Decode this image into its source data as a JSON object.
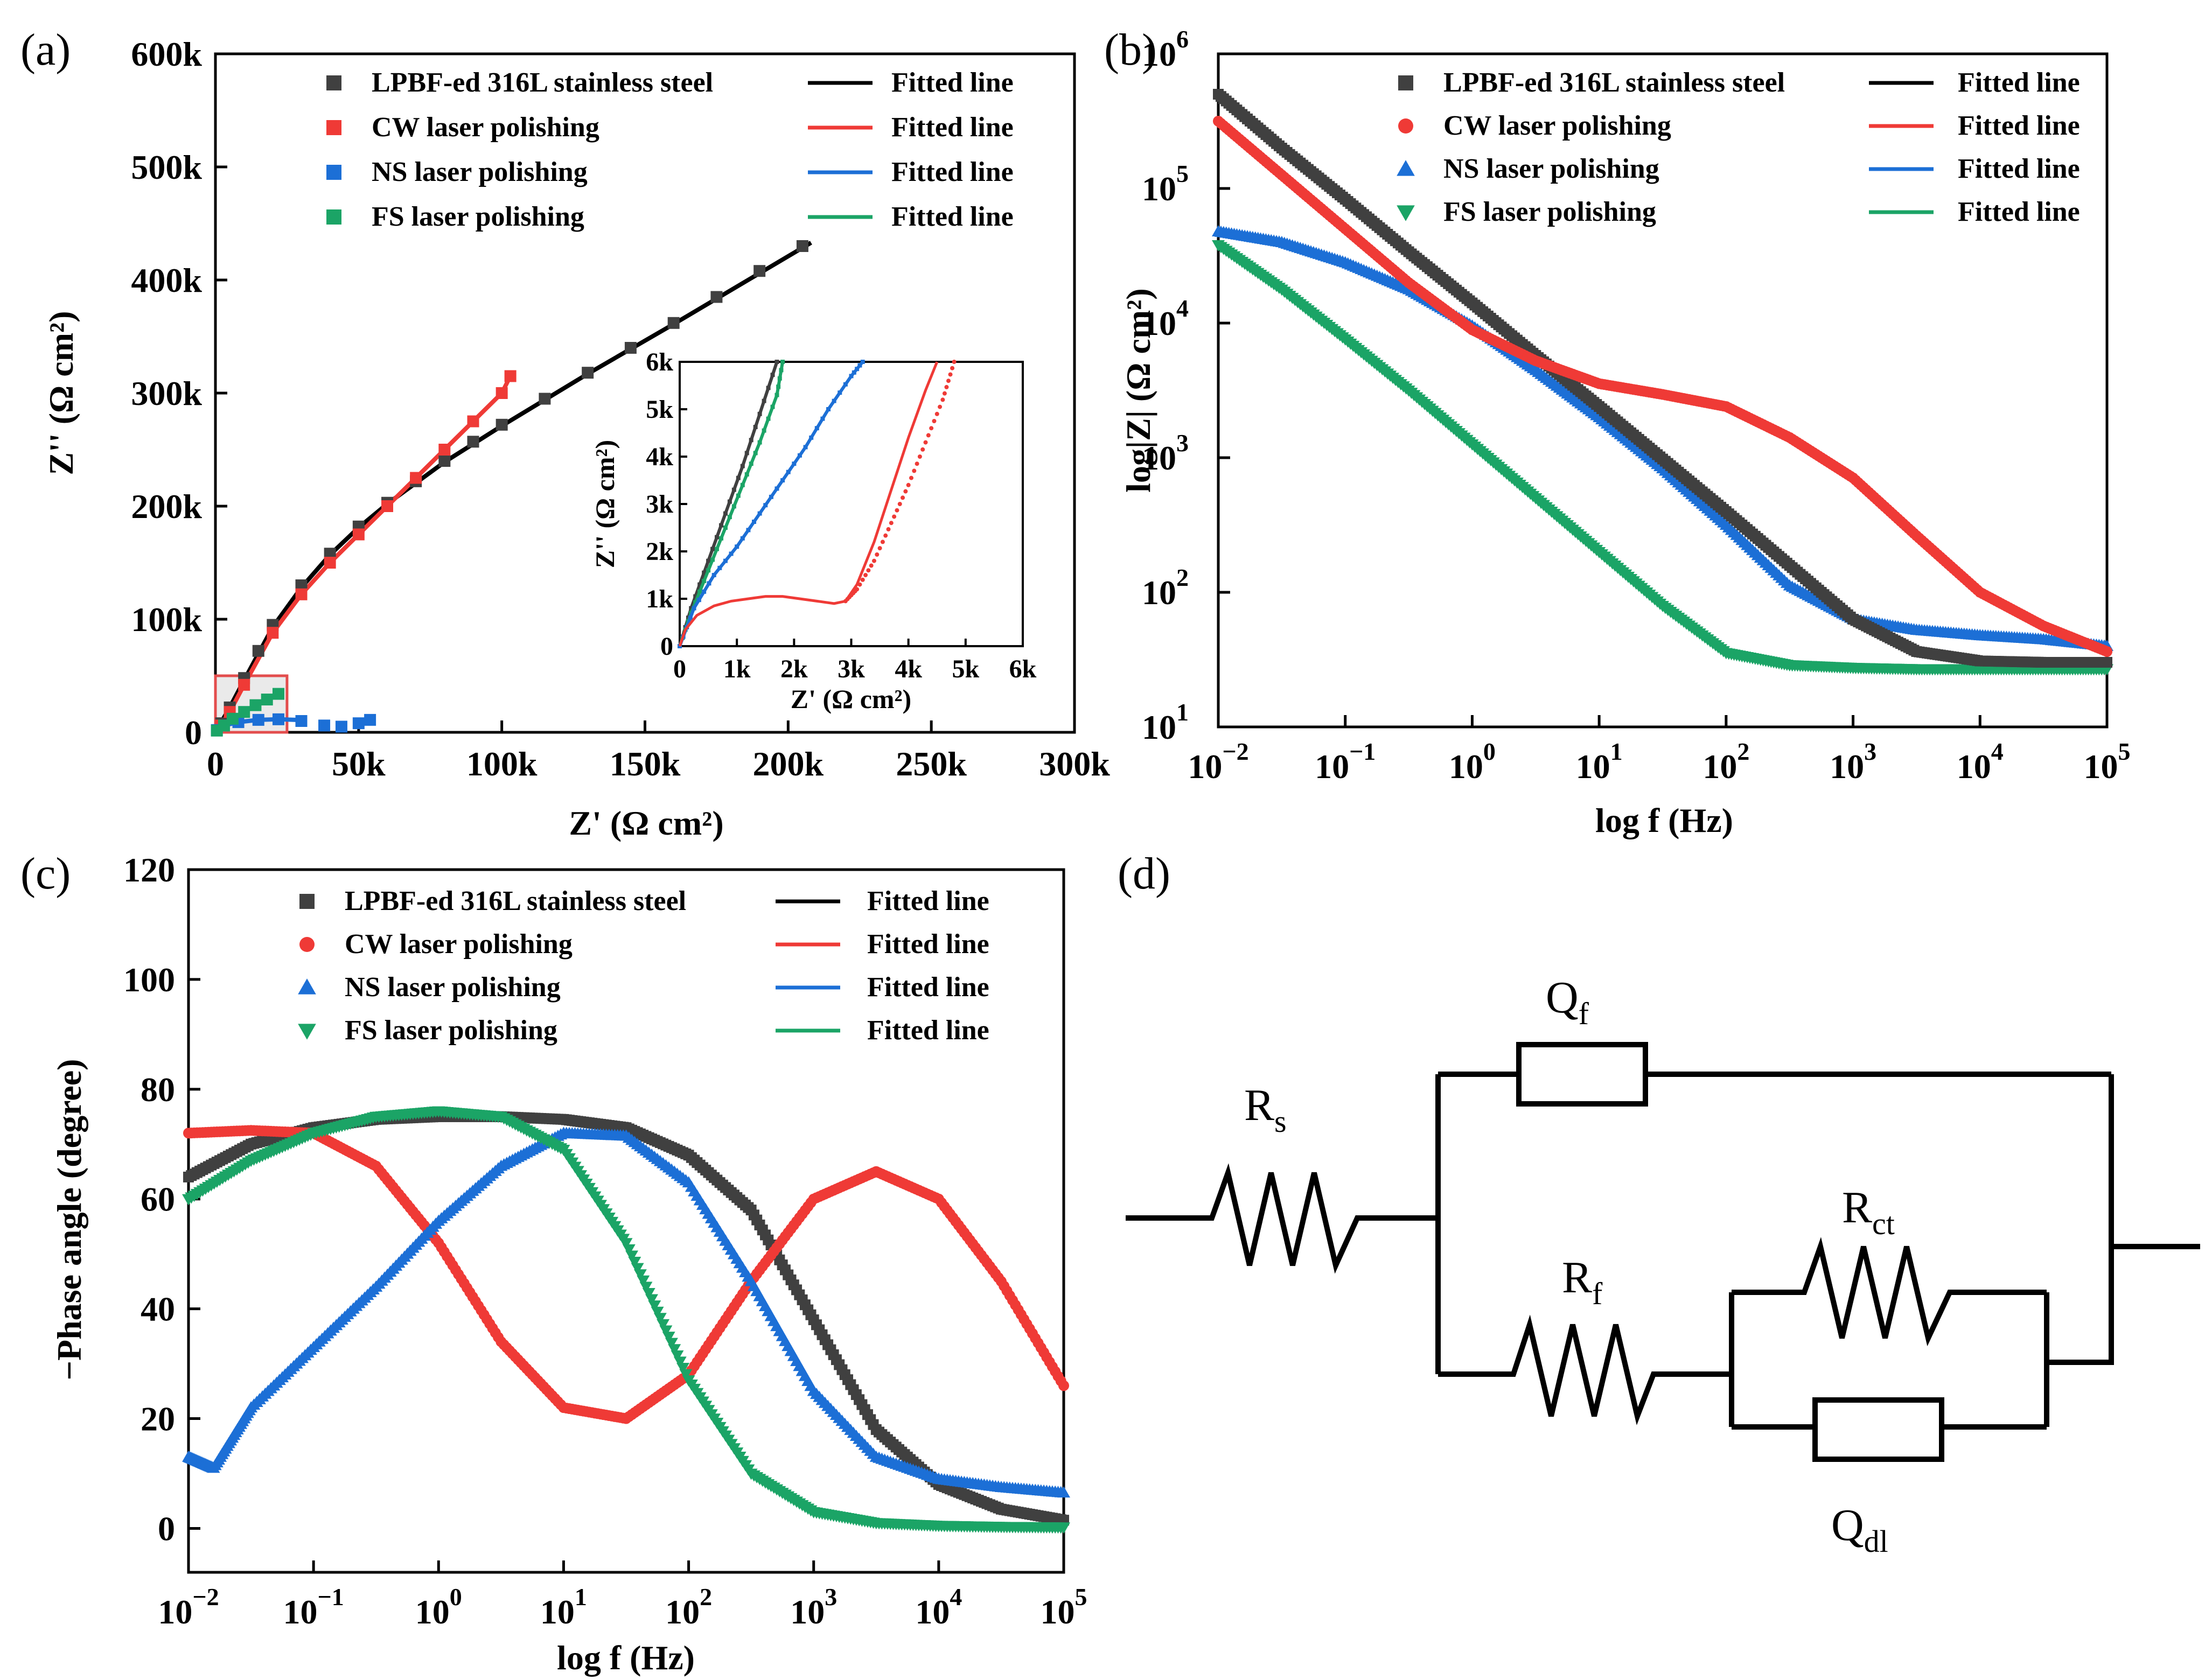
{
  "chart_data": [
    {
      "panel": "(a)",
      "type": "scatter",
      "title": "",
      "xlabel": "Z' (Ω cm²)",
      "ylabel": "Z'' (Ω cm²)",
      "xlim": [
        0,
        300000
      ],
      "ylim": [
        0,
        600000
      ],
      "xticks": [
        "0",
        "50k",
        "100k",
        "150k",
        "200k",
        "250k",
        "300k"
      ],
      "yticks": [
        "0",
        "100k",
        "200k",
        "300k",
        "400k",
        "500k",
        "600k"
      ],
      "legend": {
        "markers": [
          "LPBF-ed 316L stainless steel",
          "CW laser polishing",
          "NS laser polishing",
          "FS laser polishing"
        ],
        "lines": [
          "Fitted line",
          "Fitted line",
          "Fitted line",
          "Fitted line"
        ]
      },
      "series": [
        {
          "name": "LPBF-ed 316L stainless steel",
          "color": "#404040",
          "marker": "square",
          "x": [
            2000,
            5000,
            10000,
            15000,
            20000,
            30000,
            40000,
            50000,
            60000,
            70000,
            80000,
            90000,
            100000,
            115000,
            130000,
            145000,
            160000,
            175000,
            190000,
            205000
          ],
          "y": [
            8000,
            22000,
            48000,
            72000,
            95000,
            130000,
            158000,
            182000,
            203000,
            222000,
            240000,
            257000,
            272000,
            295000,
            318000,
            340000,
            362000,
            385000,
            408000,
            430000
          ]
        },
        {
          "name": "CW laser polishing",
          "color": "#ef3a36",
          "marker": "square",
          "x": [
            2000,
            5000,
            10000,
            20000,
            30000,
            40000,
            50000,
            60000,
            70000,
            80000,
            90000,
            100000,
            103000
          ],
          "y": [
            6000,
            18000,
            42000,
            88000,
            122000,
            150000,
            175000,
            200000,
            225000,
            250000,
            275000,
            300000,
            315000
          ]
        },
        {
          "name": "NS laser polishing",
          "color": "#1c6fd6",
          "marker": "square",
          "x": [
            500,
            3000,
            8000,
            15000,
            22000,
            30000,
            38000,
            44000,
            50000,
            54000
          ],
          "y": [
            2000,
            6000,
            9000,
            11000,
            11500,
            10000,
            6000,
            5000,
            8000,
            11000
          ]
        },
        {
          "name": "FS laser polishing",
          "color": "#1ba466",
          "marker": "square",
          "x": [
            500,
            3000,
            6000,
            10000,
            14000,
            18000,
            22000
          ],
          "y": [
            1500,
            6000,
            12000,
            18000,
            24000,
            29000,
            34000
          ]
        }
      ],
      "fits": [
        {
          "name": "Fitted line",
          "color": "#000000",
          "x": [
            0,
            5000,
            10000,
            20000,
            30000,
            40000,
            50000,
            60000,
            80000,
            100000,
            130000,
            160000,
            190000,
            208000
          ],
          "y": [
            0,
            22000,
            46000,
            93000,
            128000,
            157000,
            181000,
            202000,
            239000,
            271000,
            317000,
            361000,
            406000,
            433000
          ]
        },
        {
          "name": "Fitted line",
          "color": "#ef3a36",
          "x": [
            0,
            5000,
            10000,
            20000,
            30000,
            40000,
            50000,
            60000,
            70000,
            80000,
            90000,
            100000,
            103000
          ],
          "y": [
            0,
            18000,
            42000,
            88000,
            122000,
            150000,
            175000,
            200000,
            225000,
            250000,
            275000,
            300000,
            315000
          ]
        },
        {
          "name": "Fitted line",
          "color": "#1c6fd6",
          "x": [
            0,
            3000,
            8000,
            15000,
            22000,
            28000
          ],
          "y": [
            0,
            6000,
            9000,
            11000,
            11500,
            11000
          ]
        },
        {
          "name": "Fitted line",
          "color": "#1ba466",
          "x": [
            0,
            6000,
            12000,
            22000
          ],
          "y": [
            0,
            12000,
            21000,
            34000
          ]
        }
      ],
      "highlight_box": {
        "x": [
          0,
          25000
        ],
        "y": [
          0,
          50000
        ]
      },
      "inset": {
        "xlabel": "Z' (Ω cm²)",
        "ylabel": "Z'' (Ω cm²)",
        "xlim": [
          0,
          6000
        ],
        "ylim": [
          0,
          6000
        ],
        "xticks": [
          "0",
          "1k",
          "2k",
          "3k",
          "4k",
          "5k",
          "6k"
        ],
        "yticks": [
          "0",
          "1k",
          "2k",
          "3k",
          "4k",
          "5k",
          "6k"
        ],
        "series": [
          {
            "color": "#404040",
            "x": [
              0,
              200,
              500,
              800,
              1100,
              1400,
              1700
            ],
            "y": [
              0,
              800,
              1800,
              2800,
              3800,
              4900,
              6000
            ]
          },
          {
            "color": "#1ba466",
            "x": [
              0,
              200,
              500,
              800,
              1100,
              1400,
              1700,
              1800
            ],
            "y": [
              0,
              700,
              1600,
              2500,
              3400,
              4300,
              5300,
              6000
            ]
          },
          {
            "color": "#1c6fd6",
            "x": [
              0,
              250,
              600,
              1000,
              1400,
              1800,
              2200,
              2600,
              3000,
              3200
            ],
            "y": [
              0,
              800,
              1500,
              2100,
              2800,
              3500,
              4200,
              5000,
              5700,
              6000
            ]
          },
          {
            "color": "#ef3a36",
            "fit": true,
            "x": [
              0,
              100,
              300,
              600,
              900,
              1200,
              1500,
              1800,
              2100,
              2400,
              2700,
              2900,
              3100,
              3400,
              3700,
              4000,
              4300,
              4500
            ],
            "y": [
              0,
              350,
              650,
              850,
              950,
              1000,
              1050,
              1050,
              1000,
              950,
              900,
              950,
              1300,
              2200,
              3300,
              4400,
              5400,
              6000
            ]
          },
          {
            "color": "#ef3a36",
            "dotted": true,
            "x": [
              2900,
              3100,
              3400,
              3700,
              4000,
              4300,
              4600,
              4800
            ],
            "y": [
              950,
              1200,
              1800,
              2600,
              3400,
              4300,
              5200,
              6000
            ]
          }
        ]
      }
    },
    {
      "panel": "(b)",
      "type": "line",
      "title": "",
      "xlabel": "log f (Hz)",
      "ylabel": "log|Z| (Ω cm²)",
      "xscale": "log",
      "yscale": "log",
      "xlim": [
        0.01,
        100000
      ],
      "ylim": [
        10,
        1000000
      ],
      "xticks": [
        {
          "base": "10",
          "exp": "−2"
        },
        {
          "base": "10",
          "exp": "−1"
        },
        {
          "base": "10",
          "exp": "0"
        },
        {
          "base": "10",
          "exp": "1"
        },
        {
          "base": "10",
          "exp": "2"
        },
        {
          "base": "10",
          "exp": "3"
        },
        {
          "base": "10",
          "exp": "4"
        },
        {
          "base": "10",
          "exp": "5"
        }
      ],
      "yticks": [
        {
          "base": "10",
          "exp": "1"
        },
        {
          "base": "10",
          "exp": "2"
        },
        {
          "base": "10",
          "exp": "3"
        },
        {
          "base": "10",
          "exp": "4"
        },
        {
          "base": "10",
          "exp": "5"
        },
        {
          "base": "10",
          "exp": "6"
        }
      ],
      "legend": {
        "markers": [
          "LPBF-ed 316L stainless steel",
          "CW laser polishing",
          "NS laser polishing",
          "FS laser polishing"
        ],
        "lines": [
          "Fitted line",
          "Fitted line",
          "Fitted line",
          "Fitted line"
        ]
      },
      "series": [
        {
          "name": "LPBF-ed 316L stainless steel",
          "color": "#404040",
          "marker": "square",
          "logx": [
            -2,
            -1.5,
            -1,
            -0.5,
            0,
            0.5,
            1,
            1.5,
            2,
            2.5,
            3,
            3.5,
            4,
            4.5,
            5
          ],
          "logy": [
            5.7,
            5.3,
            4.92,
            4.53,
            4.15,
            3.76,
            3.38,
            2.99,
            2.6,
            2.2,
            1.8,
            1.56,
            1.49,
            1.48,
            1.48
          ]
        },
        {
          "name": "CW laser polishing",
          "color": "#ef3a36",
          "marker": "circle",
          "logx": [
            -2,
            -1.5,
            -1,
            -0.5,
            0,
            0.5,
            1,
            1.5,
            2,
            2.5,
            3,
            3.5,
            4,
            4.5,
            5
          ],
          "logy": [
            5.5,
            5.1,
            4.7,
            4.3,
            3.95,
            3.72,
            3.55,
            3.47,
            3.38,
            3.15,
            2.85,
            2.42,
            2.0,
            1.75,
            1.56
          ]
        },
        {
          "name": "NS laser polishing",
          "color": "#1c6fd6",
          "marker": "triangle",
          "logx": [
            -2,
            -1.5,
            -1,
            -0.5,
            0,
            0.5,
            1,
            1.5,
            2,
            2.5,
            3,
            3.5,
            4,
            4.5,
            5
          ],
          "logy": [
            4.68,
            4.6,
            4.45,
            4.25,
            3.98,
            3.65,
            3.3,
            2.92,
            2.5,
            2.05,
            1.8,
            1.72,
            1.68,
            1.65,
            1.6
          ]
        },
        {
          "name": "FS laser polishing",
          "color": "#1ba466",
          "marker": "triangle-down",
          "logx": [
            -2,
            -1.5,
            -1,
            -0.5,
            0,
            0.5,
            1,
            1.5,
            2,
            2.5,
            3,
            3.5,
            4,
            4.5,
            5
          ],
          "logy": [
            4.58,
            4.25,
            3.88,
            3.5,
            3.1,
            2.7,
            2.3,
            1.9,
            1.55,
            1.46,
            1.44,
            1.43,
            1.43,
            1.43,
            1.43
          ]
        }
      ]
    },
    {
      "panel": "(c)",
      "type": "line",
      "title": "",
      "xlabel": "log f (Hz)",
      "ylabel": "−Phase angle (degree)",
      "xscale": "log",
      "xlim": [
        0.01,
        100000
      ],
      "ylim": [
        -8,
        120
      ],
      "xticks": [
        {
          "base": "10",
          "exp": "−2"
        },
        {
          "base": "10",
          "exp": "−1"
        },
        {
          "base": "10",
          "exp": "0"
        },
        {
          "base": "10",
          "exp": "1"
        },
        {
          "base": "10",
          "exp": "2"
        },
        {
          "base": "10",
          "exp": "3"
        },
        {
          "base": "10",
          "exp": "4"
        },
        {
          "base": "10",
          "exp": "5"
        }
      ],
      "yticks": [
        "0",
        "20",
        "40",
        "60",
        "80",
        "100",
        "120"
      ],
      "legend": {
        "markers": [
          "LPBF-ed 316L stainless steel",
          "CW laser polishing",
          "NS laser polishing",
          "FS laser polishing"
        ],
        "lines": [
          "Fitted line",
          "Fitted line",
          "Fitted line",
          "Fitted line"
        ]
      },
      "series": [
        {
          "name": "LPBF-ed 316L stainless steel",
          "color": "#404040",
          "marker": "square",
          "logx": [
            -2,
            -1.5,
            -1,
            -0.5,
            0,
            0.5,
            1,
            1.5,
            2,
            2.5,
            3,
            3.5,
            4,
            4.5,
            5
          ],
          "y": [
            64,
            70,
            73,
            74.5,
            75,
            75,
            74.5,
            73,
            68,
            58,
            38,
            18,
            8,
            3.5,
            1.5
          ]
        },
        {
          "name": "CW laser polishing",
          "color": "#ef3a36",
          "marker": "circle",
          "logx": [
            -2,
            -1.5,
            -1,
            -0.5,
            0,
            0.5,
            1,
            1.5,
            2,
            2.5,
            3,
            3.5,
            4,
            4.5,
            5
          ],
          "y": [
            72,
            72.5,
            72,
            66,
            52,
            34,
            22,
            20,
            28,
            45,
            60,
            65,
            60,
            45,
            26
          ]
        },
        {
          "name": "NS laser polishing",
          "color": "#1c6fd6",
          "marker": "triangle",
          "logx": [
            -2,
            -1.8,
            -1.5,
            -1,
            -0.5,
            0,
            0.5,
            1,
            1.5,
            2,
            2.5,
            3,
            3.5,
            4,
            4.5,
            5
          ],
          "y": [
            13,
            11,
            22,
            33,
            44,
            56,
            66,
            72,
            71.5,
            63,
            45,
            25,
            13,
            9,
            7.5,
            6.5
          ]
        },
        {
          "name": "FS laser polishing",
          "color": "#1ba466",
          "marker": "triangle-down",
          "logx": [
            -2,
            -1.5,
            -1,
            -0.5,
            0,
            0.5,
            1,
            1.5,
            2,
            2.5,
            3,
            3.5,
            4,
            4.5,
            5
          ],
          "y": [
            60,
            67,
            72,
            75,
            76,
            75,
            69,
            52,
            27,
            10,
            3,
            1,
            0.5,
            0.3,
            0.2
          ]
        }
      ]
    }
  ],
  "panels": {
    "a_label": "(a)",
    "b_label": "(b)",
    "c_label": "(c)",
    "d_label": "(d)"
  },
  "circuit": {
    "components": [
      {
        "name": "Rs",
        "main": "R",
        "sub": "s"
      },
      {
        "name": "Qf",
        "main": "Q",
        "sub": "f"
      },
      {
        "name": "Rf",
        "main": "R",
        "sub": "f"
      },
      {
        "name": "Rct",
        "main": "R",
        "sub": "ct"
      },
      {
        "name": "Qdl",
        "main": "Q",
        "sub": "dl"
      }
    ]
  }
}
